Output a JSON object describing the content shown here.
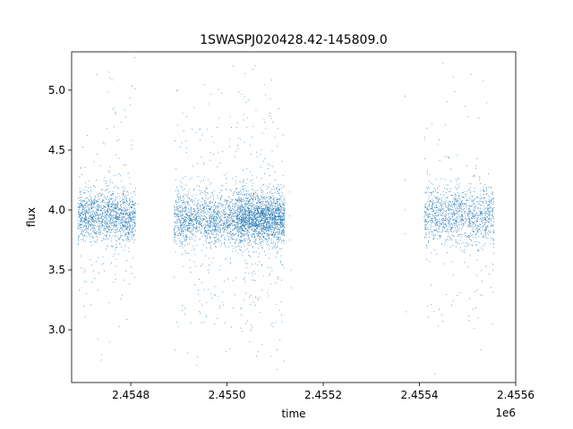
{
  "chart_data": {
    "type": "scatter",
    "title": "1SWASPJ020428.42-145809.0",
    "xlabel": "time",
    "ylabel": "flux",
    "x_offset_label": "1e6",
    "xlim": [
      2454677,
      2455600
    ],
    "ylim": [
      2.56,
      5.32
    ],
    "x_ticks": [
      2454800,
      2455000,
      2455200,
      2455400,
      2455600
    ],
    "x_tick_labels": [
      "2.4548",
      "2.4550",
      "2.4552",
      "2.4554",
      "2.4556"
    ],
    "y_ticks": [
      3.0,
      3.5,
      4.0,
      4.5,
      5.0
    ],
    "y_tick_labels": [
      "3.0",
      "3.5",
      "4.0",
      "4.5",
      "5.0"
    ],
    "grid": false,
    "marker_color": "#1f77b4",
    "series": [
      {
        "segments": [
          {
            "x_start": 2454690,
            "x_end": 2454810,
            "center": 3.95,
            "core_spread": 0.18,
            "wide_spread": 0.55,
            "n": 1500
          },
          {
            "x_start": 2454890,
            "x_end": 2455020,
            "center": 3.92,
            "core_spread": 0.18,
            "wide_spread": 0.55,
            "n": 1500
          },
          {
            "x_start": 2455020,
            "x_end": 2455120,
            "center": 3.93,
            "core_spread": 0.18,
            "wide_spread": 0.6,
            "n": 2200
          },
          {
            "x_start": 2455410,
            "x_end": 2455555,
            "center": 3.95,
            "core_spread": 0.2,
            "wide_spread": 0.6,
            "n": 1300
          }
        ],
        "outliers": [
          {
            "x": 2455130,
            "y": 4.15
          },
          {
            "x": 2455130,
            "y": 3.95
          },
          {
            "x": 2455130,
            "y": 3.75
          },
          {
            "x": 2455133,
            "y": 3.5
          },
          {
            "x": 2455133,
            "y": 3.35
          },
          {
            "x": 2455370,
            "y": 4.95
          },
          {
            "x": 2455370,
            "y": 4.25
          },
          {
            "x": 2455370,
            "y": 4.0
          },
          {
            "x": 2455370,
            "y": 3.8
          },
          {
            "x": 2455372,
            "y": 3.15
          },
          {
            "x": 2454815,
            "y": 4.05
          },
          {
            "x": 2454755,
            "y": 5.15
          },
          {
            "x": 2454729,
            "y": 5.13
          }
        ]
      }
    ]
  }
}
